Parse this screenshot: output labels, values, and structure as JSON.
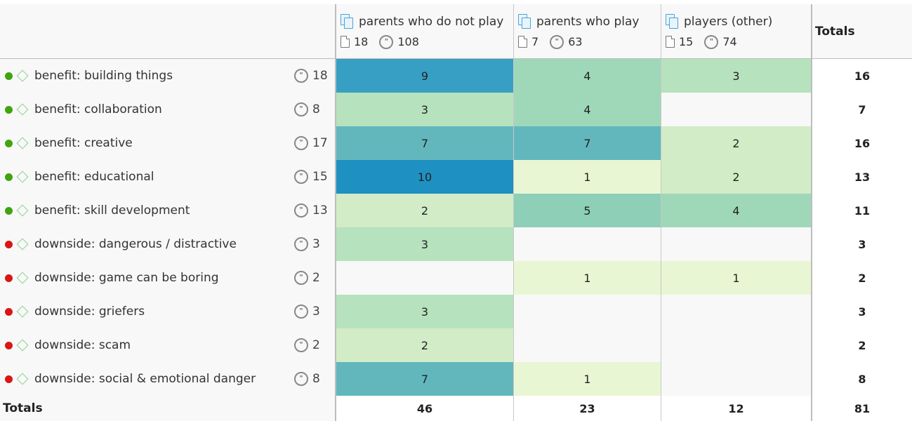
{
  "header": {
    "groups": [
      {
        "name": "parents who do not play",
        "docs": "18",
        "quotes": "108"
      },
      {
        "name": "parents who play",
        "docs": "7",
        "quotes": "63"
      },
      {
        "name": "players (other)",
        "docs": "15",
        "quotes": "74"
      }
    ],
    "totals_label": "Totals"
  },
  "rows": [
    {
      "status": "green",
      "label": "benefit: building things",
      "count": "18",
      "cells": [
        "9",
        "4",
        "3"
      ],
      "total": "16",
      "colors": [
        "#389fc4",
        "#9fd8b9",
        "#b6e2bd"
      ]
    },
    {
      "status": "green",
      "label": "benefit: collaboration",
      "count": "8",
      "cells": [
        "3",
        "4",
        ""
      ],
      "total": "7",
      "colors": [
        "#b6e2bd",
        "#9fd8b9",
        ""
      ]
    },
    {
      "status": "green",
      "label": "benefit: creative",
      "count": "17",
      "cells": [
        "7",
        "7",
        "2"
      ],
      "total": "16",
      "colors": [
        "#62b7bd",
        "#62b7bd",
        "#d2ecc7"
      ]
    },
    {
      "status": "green",
      "label": "benefit: educational",
      "count": "15",
      "cells": [
        "10",
        "1",
        "2"
      ],
      "total": "13",
      "colors": [
        "#1f90c2",
        "#e9f6d3",
        "#d2ecc7"
      ]
    },
    {
      "status": "green",
      "label": "benefit: skill development",
      "count": "13",
      "cells": [
        "2",
        "5",
        "4"
      ],
      "total": "11",
      "colors": [
        "#d2ecc7",
        "#8dcfb7",
        "#9fd8b9"
      ]
    },
    {
      "status": "red",
      "label": "downside: dangerous / distractive",
      "count": "3",
      "cells": [
        "3",
        "",
        ""
      ],
      "total": "3",
      "colors": [
        "#b6e2bd",
        "",
        ""
      ]
    },
    {
      "status": "red",
      "label": "downside: game can be boring",
      "count": "2",
      "cells": [
        "",
        "1",
        "1"
      ],
      "total": "2",
      "colors": [
        "",
        "#e9f6d3",
        "#e9f6d3"
      ]
    },
    {
      "status": "red",
      "label": "downside: griefers",
      "count": "3",
      "cells": [
        "3",
        "",
        ""
      ],
      "total": "3",
      "colors": [
        "#b6e2bd",
        "",
        ""
      ]
    },
    {
      "status": "red",
      "label": "downside: scam",
      "count": "2",
      "cells": [
        "2",
        "",
        ""
      ],
      "total": "2",
      "colors": [
        "#d2ecc7",
        "",
        ""
      ]
    },
    {
      "status": "red",
      "label": "downside: social & emotional danger",
      "count": "8",
      "cells": [
        "7",
        "1",
        ""
      ],
      "total": "8",
      "colors": [
        "#62b7bd",
        "#e9f6d3",
        ""
      ]
    }
  ],
  "totals": {
    "label": "Totals",
    "values": [
      "46",
      "23",
      "12"
    ],
    "grand": "81"
  },
  "empty_cell_color": "#f8f8f8"
}
